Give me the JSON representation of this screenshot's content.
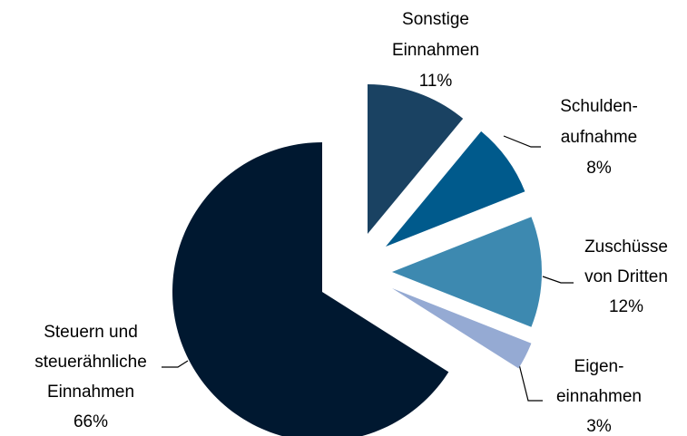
{
  "chart_data": {
    "type": "pie",
    "categories": [
      [
        "Sonstige",
        "Einnahmen"
      ],
      [
        "Schulden-",
        "aufnahme"
      ],
      [
        "Zuschüsse",
        "von Dritten"
      ],
      [
        "Eigen-",
        "einnahmen"
      ],
      [
        "Steuern und",
        "steuerähnliche",
        "Einnahmen"
      ]
    ],
    "values": [
      11,
      8,
      12,
      3,
      66
    ],
    "value_labels": [
      "11%",
      "8%",
      "12%",
      "3%",
      "66%"
    ],
    "colors": [
      "#1a4262",
      "#005a8c",
      "#3d89b0",
      "#95aad3",
      "#001830"
    ]
  }
}
